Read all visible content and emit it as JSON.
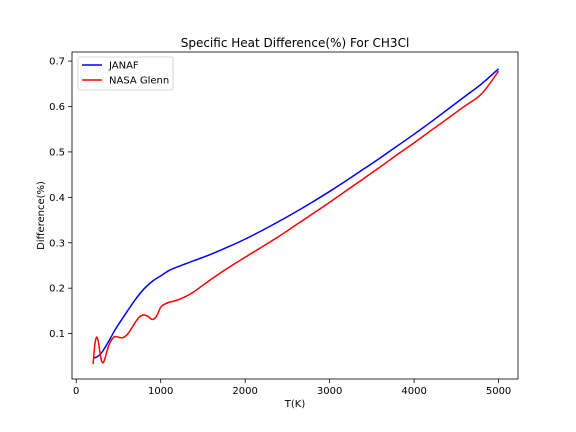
{
  "chart_data": {
    "type": "line",
    "title": "Specific Heat Difference(%) For CH3Cl",
    "xlabel": "T(K)",
    "ylabel": "Difference(%)",
    "xlim": [
      -50,
      5230
    ],
    "ylim": [
      0.0,
      0.72
    ],
    "xticks": [
      0,
      1000,
      2000,
      3000,
      4000,
      5000
    ],
    "xtick_labels": [
      "0",
      "1000",
      "2000",
      "3000",
      "4000",
      "5000"
    ],
    "yticks": [
      0.1,
      0.2,
      0.3,
      0.4,
      0.5,
      0.6,
      0.7
    ],
    "ytick_labels": [
      "0.1",
      "0.2",
      "0.3",
      "0.4",
      "0.5",
      "0.6",
      "0.7"
    ],
    "grid": false,
    "legend_position": "upper-left",
    "series": [
      {
        "name": "JANAF",
        "color": "#0000ff",
        "x": [
          200,
          250,
          300,
          350,
          400,
          450,
          500,
          600,
          700,
          800,
          900,
          1000,
          1100,
          1200,
          1400,
          1600,
          1800,
          2000,
          2200,
          2400,
          2600,
          2800,
          3000,
          3200,
          3400,
          3600,
          3800,
          4000,
          4200,
          4400,
          4600,
          4800,
          5000
        ],
        "y": [
          0.046,
          0.049,
          0.058,
          0.072,
          0.088,
          0.105,
          0.12,
          0.148,
          0.175,
          0.198,
          0.215,
          0.227,
          0.239,
          0.247,
          0.261,
          0.275,
          0.291,
          0.308,
          0.327,
          0.347,
          0.368,
          0.39,
          0.413,
          0.437,
          0.462,
          0.487,
          0.513,
          0.539,
          0.566,
          0.594,
          0.622,
          0.65,
          0.683
        ]
      },
      {
        "name": "NASA Glenn",
        "color": "#ff0000",
        "x": [
          200,
          220,
          240,
          260,
          280,
          300,
          320,
          340,
          370,
          400,
          450,
          500,
          550,
          600,
          650,
          700,
          750,
          800,
          850,
          900,
          950,
          1000,
          1050,
          1100,
          1200,
          1300,
          1400,
          1600,
          1800,
          2000,
          2200,
          2400,
          2600,
          2800,
          3000,
          3200,
          3400,
          3600,
          3800,
          4000,
          4200,
          4400,
          4600,
          4800,
          5000
        ],
        "y": [
          0.033,
          0.075,
          0.092,
          0.084,
          0.06,
          0.04,
          0.036,
          0.045,
          0.065,
          0.08,
          0.093,
          0.092,
          0.091,
          0.097,
          0.11,
          0.125,
          0.137,
          0.141,
          0.138,
          0.131,
          0.138,
          0.158,
          0.165,
          0.169,
          0.174,
          0.182,
          0.193,
          0.22,
          0.245,
          0.268,
          0.291,
          0.314,
          0.339,
          0.364,
          0.389,
          0.415,
          0.441,
          0.467,
          0.494,
          0.52,
          0.547,
          0.574,
          0.601,
          0.628,
          0.678
        ]
      }
    ]
  }
}
